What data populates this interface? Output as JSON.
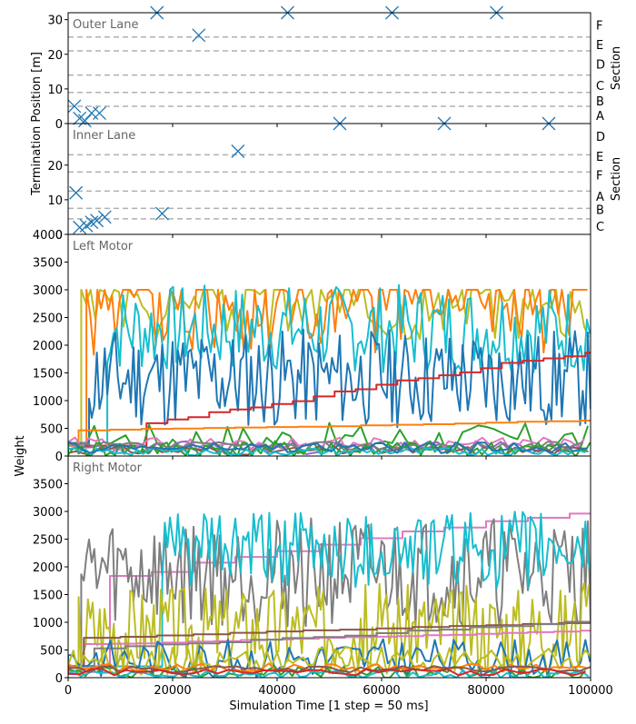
{
  "chart_data": [
    {
      "type": "scatter",
      "panel_label": "Outer Lane",
      "ylabel": "Termination Position [m]",
      "right_axis_label": "Section",
      "xlim": [
        0,
        100000
      ],
      "ylim": [
        0,
        32
      ],
      "yticks": [
        0,
        10,
        20,
        30
      ],
      "section_lines": [
        5,
        9,
        14,
        21,
        25
      ],
      "sections": [
        {
          "label": "F",
          "y": 28.4
        },
        {
          "label": "E",
          "y": 22.8
        },
        {
          "label": "D",
          "y": 17.2
        },
        {
          "label": "C",
          "y": 11.0
        },
        {
          "label": "B",
          "y": 6.6
        },
        {
          "label": "A",
          "y": 2.3
        }
      ],
      "marker": "x",
      "color": "#1f77b4",
      "points": [
        [
          1200,
          5
        ],
        [
          2200,
          1.5
        ],
        [
          3200,
          0.8
        ],
        [
          4500,
          3
        ],
        [
          6000,
          3
        ],
        [
          17000,
          32
        ],
        [
          25000,
          25.5
        ],
        [
          42000,
          32
        ],
        [
          62000,
          32
        ],
        [
          82000,
          32
        ]
      ]
    },
    {
      "type": "scatter",
      "panel_label": "Inner Lane",
      "right_axis_label": "Section",
      "xlim": [
        0,
        100000
      ],
      "ylim": [
        0,
        32
      ],
      "yticks": [
        0,
        10,
        20
      ],
      "section_lines": [
        4.5,
        7.5,
        12.5,
        18,
        23
      ],
      "sections": [
        {
          "label": "D",
          "y": 28.3
        },
        {
          "label": "E",
          "y": 22.6
        },
        {
          "label": "F",
          "y": 17.2
        },
        {
          "label": "A",
          "y": 11.0
        },
        {
          "label": "B",
          "y": 7.2
        },
        {
          "label": "C",
          "y": 2.3
        }
      ],
      "marker": "x",
      "color": "#1f77b4",
      "points": [
        [
          1500,
          12
        ],
        [
          2200,
          2
        ],
        [
          3500,
          2.5
        ],
        [
          4500,
          3.5
        ],
        [
          5500,
          4
        ],
        [
          7000,
          5
        ],
        [
          18000,
          6
        ],
        [
          32500,
          24
        ],
        [
          52000,
          32
        ],
        [
          72000,
          32
        ],
        [
          92000,
          32
        ]
      ]
    },
    {
      "type": "line",
      "panel_label": "Left Motor",
      "ylabel": "Weight",
      "xlim": [
        0,
        100000
      ],
      "ylim": [
        0,
        4000
      ],
      "yticks": [
        0,
        500,
        1000,
        1500,
        2000,
        2500,
        3000,
        3500,
        4000
      ],
      "series_styles": [
        {
          "color": "#bcbd22",
          "kind": "cap",
          "base": 2600,
          "amp": 500,
          "start": 2500,
          "seed": 3,
          "step": 900
        },
        {
          "color": "#ff7f0e",
          "kind": "cap",
          "base": 2500,
          "amp": 700,
          "start": 3500,
          "seed": 5,
          "step": 700
        },
        {
          "color": "#17becf",
          "kind": "osc",
          "base": 2300,
          "amp": 800,
          "start": 7500,
          "seed": 7,
          "step": 600
        },
        {
          "color": "#1f77b4",
          "kind": "osc",
          "base": 1400,
          "amp": 900,
          "start": 4000,
          "seed": 11,
          "step": 500
        },
        {
          "color": "#d62728",
          "kind": "stair",
          "base": 500,
          "end": 1900,
          "start": 15000,
          "seed": 13,
          "step": 4000
        },
        {
          "color": "#2ca02c",
          "kind": "noisy",
          "base": 300,
          "amp": 300,
          "start": 2000,
          "seed": 17,
          "step": 1500
        },
        {
          "color": "#ff7f0e",
          "kind": "stair",
          "base": 450,
          "end": 620,
          "start": 2000,
          "seed": 19,
          "step": 6000
        },
        {
          "color": "#9467bd",
          "kind": "noisy",
          "base": 150,
          "amp": 120,
          "start": 0,
          "seed": 23,
          "step": 1200
        },
        {
          "color": "#e377c2",
          "kind": "noisy",
          "base": 220,
          "amp": 120,
          "start": 0,
          "seed": 29,
          "step": 1300
        },
        {
          "color": "#8c564b",
          "kind": "noisy",
          "base": 100,
          "amp": 80,
          "start": 0,
          "seed": 31,
          "step": 1500
        },
        {
          "color": "#7f7f7f",
          "kind": "noisy",
          "base": 180,
          "amp": 80,
          "start": 0,
          "seed": 37,
          "step": 1700
        },
        {
          "color": "#2ca02c",
          "kind": "noisy",
          "base": 120,
          "amp": 150,
          "start": 0,
          "seed": 41,
          "step": 900
        },
        {
          "color": "#17becf",
          "kind": "noisy",
          "base": 80,
          "amp": 70,
          "start": 0,
          "seed": 43,
          "step": 1100
        },
        {
          "color": "#1f77b4",
          "kind": "noisy",
          "base": 150,
          "amp": 100,
          "start": 0,
          "seed": 47,
          "step": 1400
        }
      ]
    },
    {
      "type": "line",
      "panel_label": "Right Motor",
      "xlabel": "Simulation Time [1 step = 50 ms]",
      "xlim": [
        0,
        100000
      ],
      "xticks": [
        0,
        20000,
        40000,
        60000,
        80000,
        100000
      ],
      "ylim": [
        0,
        4000
      ],
      "yticks": [
        0,
        500,
        1000,
        1500,
        2000,
        2500,
        3000,
        3500
      ],
      "series_styles": [
        {
          "color": "#e377c2",
          "kind": "stair",
          "base": 1700,
          "end": 3000,
          "start": 8000,
          "seed": 53,
          "step": 8000
        },
        {
          "color": "#7f7f7f",
          "kind": "osc",
          "base": 1900,
          "amp": 1000,
          "start": 2500,
          "seed": 59,
          "step": 500
        },
        {
          "color": "#17becf",
          "kind": "osc",
          "base": 2300,
          "amp": 700,
          "start": 18000,
          "seed": 61,
          "step": 500
        },
        {
          "color": "#bcbd22",
          "kind": "osc",
          "base": 900,
          "amp": 800,
          "start": 2000,
          "seed": 67,
          "step": 450
        },
        {
          "color": "#e377c2",
          "kind": "stair",
          "base": 600,
          "end": 850,
          "start": 3000,
          "seed": 71,
          "step": 5000
        },
        {
          "color": "#8c564b",
          "kind": "stair",
          "base": 700,
          "end": 950,
          "start": 3000,
          "seed": 73,
          "step": 7000
        },
        {
          "color": "#7f7f7f",
          "kind": "stair",
          "base": 500,
          "end": 1000,
          "start": 5000,
          "seed": 79,
          "step": 6000
        },
        {
          "color": "#1f77b4",
          "kind": "noisy",
          "base": 350,
          "amp": 350,
          "start": 0,
          "seed": 83,
          "step": 900
        },
        {
          "color": "#bcbd22",
          "kind": "noisy",
          "base": 300,
          "amp": 250,
          "start": 0,
          "seed": 89,
          "step": 1000
        },
        {
          "color": "#2ca02c",
          "kind": "noisy",
          "base": 100,
          "amp": 120,
          "start": 0,
          "seed": 97,
          "step": 1100
        },
        {
          "color": "#ff7f0e",
          "kind": "noisy",
          "base": 180,
          "amp": 80,
          "start": 0,
          "seed": 101,
          "step": 1600
        },
        {
          "color": "#17becf",
          "kind": "noisy",
          "base": 60,
          "amp": 80,
          "start": 0,
          "seed": 103,
          "step": 1200
        },
        {
          "color": "#8c564b",
          "kind": "noisy",
          "base": 150,
          "amp": 60,
          "start": 0,
          "seed": 107,
          "step": 2000
        },
        {
          "color": "#d62728",
          "kind": "noisy",
          "base": 100,
          "amp": 60,
          "start": 0,
          "seed": 109,
          "step": 2200
        }
      ]
    }
  ],
  "shared": {
    "xlabel": "Simulation Time [1 step = 50 ms]",
    "ylabel_top": "Termination Position [m]",
    "ylabel_bottom": "Weight"
  }
}
